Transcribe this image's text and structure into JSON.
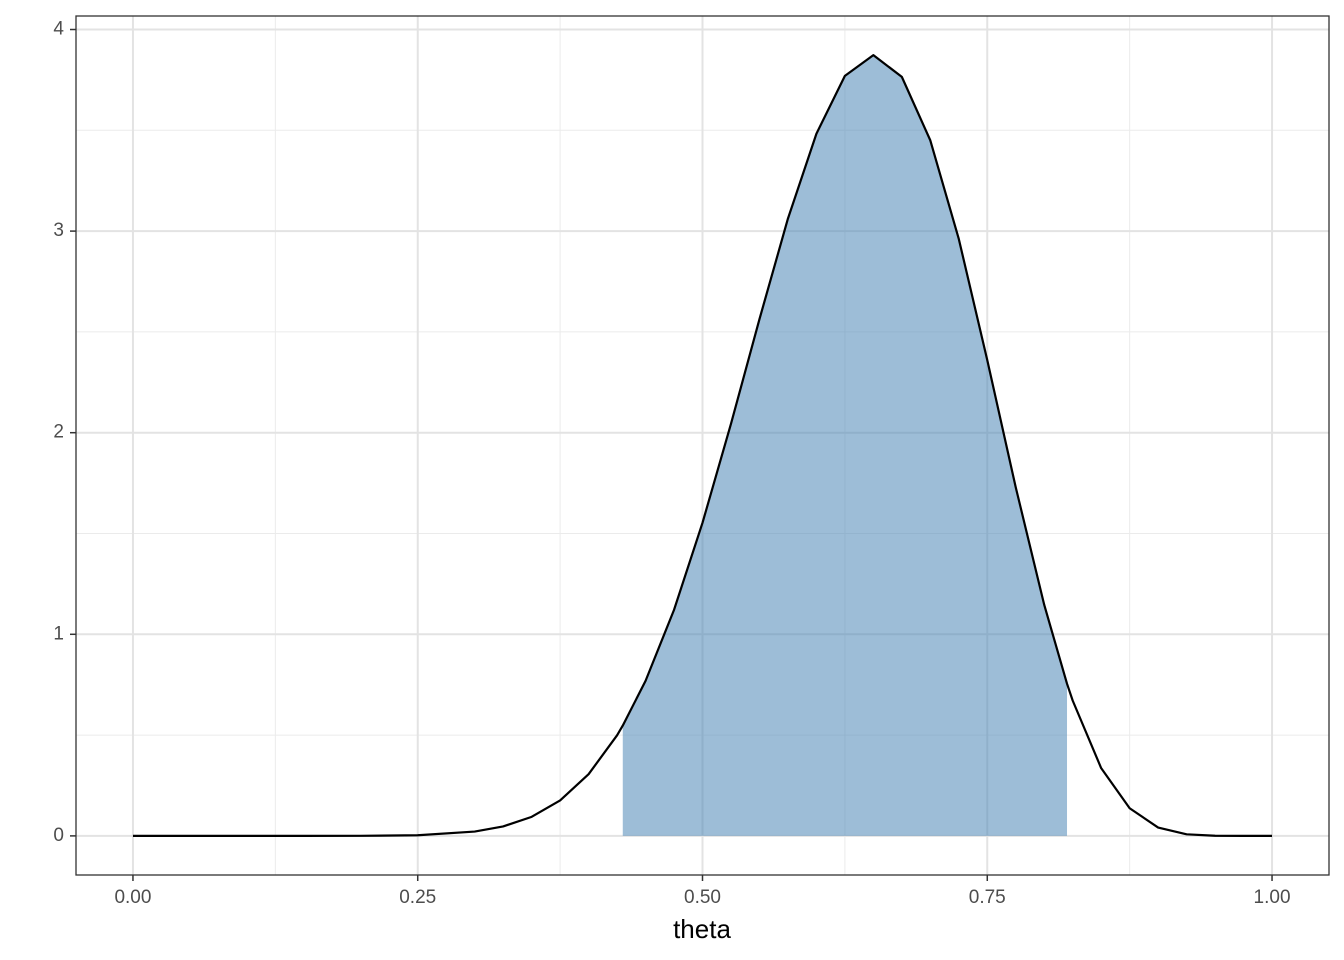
{
  "chart_data": {
    "type": "line",
    "x_label": "theta",
    "x": [
      0,
      0.05,
      0.1,
      0.15,
      0.2,
      0.25,
      0.3,
      0.325,
      0.35,
      0.375,
      0.4,
      0.425,
      0.43,
      0.45,
      0.475,
      0.5,
      0.525,
      0.55,
      0.575,
      0.6,
      0.625,
      0.65,
      0.675,
      0.7,
      0.725,
      0.75,
      0.775,
      0.8,
      0.82,
      0.825,
      0.85,
      0.875,
      0.9,
      0.925,
      0.95,
      0.975,
      1
    ],
    "values": [
      0,
      0,
      0,
      1e-05,
      0.00028,
      0.00324,
      0.0214,
      0.0469,
      0.0944,
      0.176,
      0.306,
      0.499,
      0.547,
      0.769,
      1.121,
      1.553,
      2.044,
      2.563,
      3.062,
      3.483,
      3.77,
      3.873,
      3.765,
      3.45,
      2.961,
      2.36,
      1.729,
      1.146,
      0.755,
      0.671,
      0.336,
      0.137,
      0.0414,
      0.0079,
      0.00065,
      7e-06,
      0
    ],
    "color": "#000000",
    "shade": {
      "x": [
        0.43,
        0.45,
        0.475,
        0.5,
        0.525,
        0.55,
        0.575,
        0.6,
        0.625,
        0.65,
        0.675,
        0.7,
        0.725,
        0.75,
        0.775,
        0.8,
        0.82
      ],
      "values": [
        0.547,
        0.769,
        1.121,
        1.553,
        2.044,
        2.563,
        3.062,
        3.483,
        3.77,
        3.873,
        3.765,
        3.45,
        2.961,
        2.36,
        1.729,
        1.146,
        0.755
      ],
      "color": "#4682b4",
      "opacity": 0.53
    },
    "xlim": [
      -0.05,
      1.05
    ],
    "ylim": [
      -0.194,
      4.067
    ],
    "xticks": [
      {
        "value": 0,
        "label": "0.00"
      },
      {
        "value": 0.25,
        "label": "0.25"
      },
      {
        "value": 0.5,
        "label": "0.50"
      },
      {
        "value": 0.75,
        "label": "0.75"
      },
      {
        "value": 1,
        "label": "1.00"
      }
    ],
    "yticks": [
      0,
      1,
      2,
      3,
      4
    ],
    "x_minor_grid": [
      0.125,
      0.375,
      0.625,
      0.875
    ],
    "y_minor_grid": [
      0.5,
      1.5,
      2.5,
      3.5
    ],
    "grid": true
  }
}
